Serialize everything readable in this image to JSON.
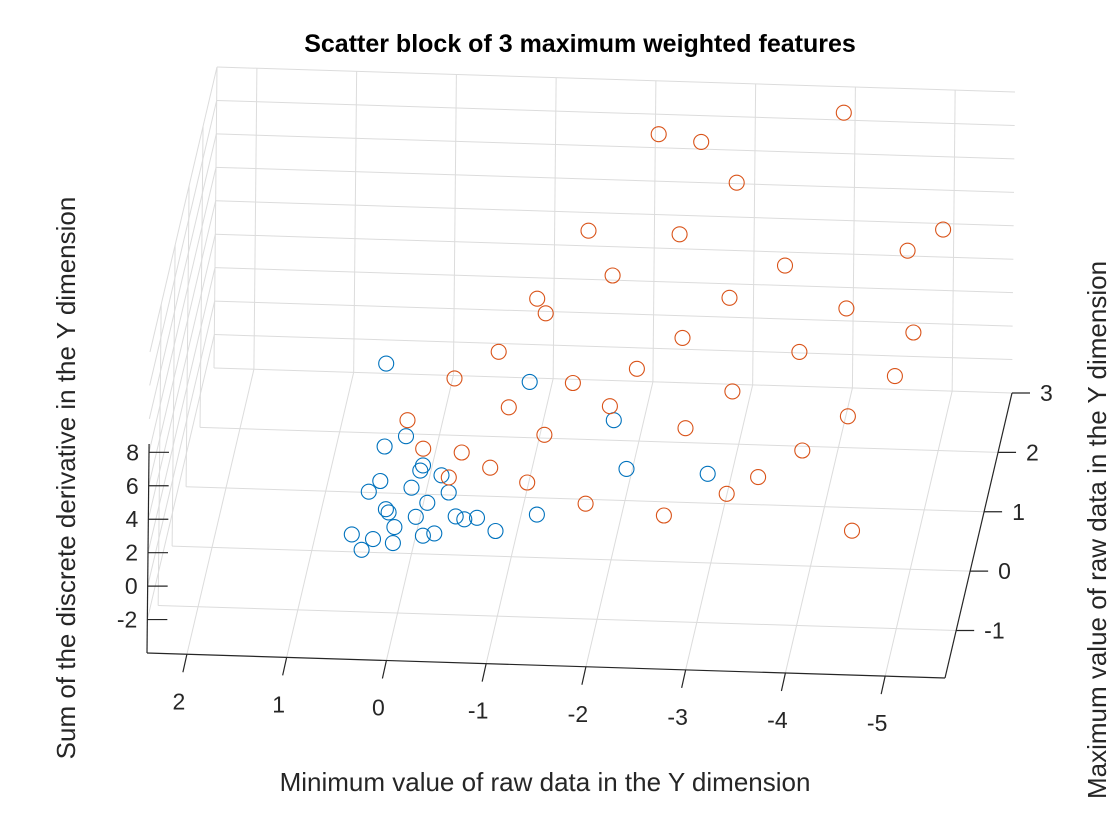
{
  "chart_data": {
    "type": "scatter3d",
    "title": "Scatter block of 3 maximum weighted features",
    "xlabel": "Minimum value of raw data in the Y dimension",
    "ylabel": "Maximum value of raw data in the Y dimension",
    "zlabel": "Sum of the discrete derivative in the Y dimension",
    "x_ticks": [
      "2",
      "1",
      "0",
      "-1",
      "-2",
      "-3",
      "-4",
      "-5"
    ],
    "y_ticks": [
      "-1",
      "0",
      "1",
      "2",
      "3"
    ],
    "z_ticks": [
      "-2",
      "0",
      "2",
      "4",
      "6",
      "8"
    ],
    "grid": true,
    "colors": {
      "series_a": "#0072BD",
      "series_b": "#D95319"
    },
    "series_a_points": [
      [
        0.3,
        -1.5,
        1.5
      ],
      [
        0.2,
        -1.4,
        1.8
      ],
      [
        0.0,
        -1.3,
        2.2
      ],
      [
        -0.2,
        -1.2,
        2.5
      ],
      [
        0.1,
        -1.0,
        2.0
      ],
      [
        -0.3,
        -1.1,
        3.0
      ],
      [
        0.4,
        -1.5,
        2.4
      ],
      [
        0.2,
        -0.9,
        3.5
      ],
      [
        -0.4,
        -1.3,
        1.9
      ],
      [
        -0.1,
        -0.8,
        2.8
      ],
      [
        -0.6,
        -1.2,
        2.6
      ],
      [
        0.3,
        -1.0,
        3.2
      ],
      [
        -0.2,
        -0.7,
        3.8
      ],
      [
        0.0,
        -1.4,
        1.6
      ],
      [
        -0.5,
        -1.0,
        3.3
      ],
      [
        -0.3,
        -1.4,
        2.1
      ],
      [
        0.1,
        -1.2,
        2.9
      ],
      [
        -0.8,
        -1.1,
        2.2
      ],
      [
        -0.2,
        -0.9,
        4.2
      ],
      [
        0.2,
        -0.6,
        4.5
      ],
      [
        -1.0,
        -1.2,
        1.8
      ],
      [
        -0.4,
        -0.8,
        3.6
      ],
      [
        -0.7,
        -1.3,
        2.8
      ],
      [
        0.0,
        -0.5,
        4.8
      ],
      [
        -1.4,
        -1.1,
        2.5
      ],
      [
        -2.2,
        -0.4,
        2.9
      ],
      [
        -3.0,
        -0.3,
        2.4
      ],
      [
        -2.0,
        0.1,
        4.0
      ],
      [
        -1.1,
        0.5,
        4.7
      ],
      [
        0.3,
        0.2,
        6.6
      ]
    ],
    "series_b_points": [
      [
        -4.7,
        1.8,
        8.6
      ],
      [
        -5.0,
        2.2,
        8.5
      ],
      [
        -4.8,
        0.2,
        6.8
      ],
      [
        -4.4,
        -0.3,
        6.1
      ],
      [
        -4.9,
        0.8,
        7.3
      ],
      [
        -4.2,
        1.0,
        7.9
      ],
      [
        -3.8,
        0.5,
        7.0
      ],
      [
        -4.0,
        -0.7,
        5.4
      ],
      [
        -3.5,
        1.6,
        8.2
      ],
      [
        -3.2,
        0.0,
        6.3
      ],
      [
        -3.0,
        1.2,
        7.6
      ],
      [
        -2.8,
        -0.5,
        5.8
      ],
      [
        -2.6,
        0.7,
        6.9
      ],
      [
        -3.6,
        -1.0,
        4.8
      ],
      [
        -2.4,
        1.9,
        8.8
      ],
      [
        -2.2,
        0.3,
        6.4
      ],
      [
        -2.0,
        -0.2,
        5.9
      ],
      [
        -1.8,
        1.4,
        8.0
      ],
      [
        -1.6,
        0.0,
        6.5
      ],
      [
        -1.4,
        -0.6,
        5.5
      ],
      [
        -1.2,
        0.9,
        7.4
      ],
      [
        -1.0,
        -0.3,
        6.0
      ],
      [
        -0.8,
        0.4,
        6.8
      ],
      [
        -0.6,
        -0.8,
        5.0
      ],
      [
        -0.4,
        0.1,
        6.2
      ],
      [
        -2.9,
        2.4,
        10.2
      ],
      [
        -2.5,
        2.7,
        11.5
      ],
      [
        -3.9,
        2.9,
        12.8
      ],
      [
        -2.1,
        2.5,
        12.6
      ],
      [
        -1.5,
        1.8,
        9.2
      ],
      [
        -1.1,
        1.0,
        7.9
      ],
      [
        -0.9,
        -0.9,
        4.5
      ],
      [
        -0.5,
        -1.0,
        4.2
      ],
      [
        -0.2,
        -0.7,
        4.8
      ],
      [
        0.0,
        -0.4,
        5.4
      ],
      [
        -1.9,
        -1.2,
        3.6
      ],
      [
        -2.7,
        -1.3,
        3.4
      ],
      [
        -3.3,
        -1.1,
        4.1
      ],
      [
        -4.6,
        -1.4,
        3.2
      ],
      [
        -1.3,
        -1.1,
        4.4
      ]
    ]
  }
}
